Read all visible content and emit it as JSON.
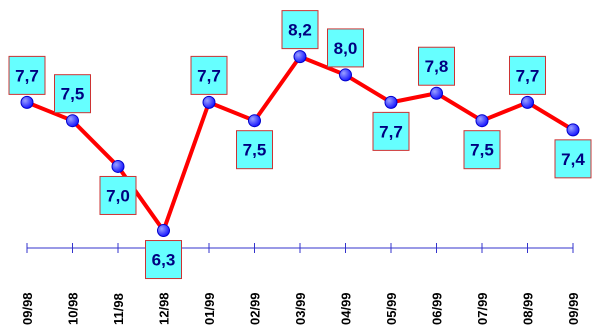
{
  "chart_data": {
    "type": "line",
    "title": "",
    "xlabel": "",
    "ylabel": "",
    "categories": [
      "09/98",
      "10/98",
      "11/98",
      "12/98",
      "01/99",
      "02/99",
      "03/99",
      "04/99",
      "05/99",
      "06/99",
      "07/99",
      "08/99",
      "09/99"
    ],
    "series": [
      {
        "values": [
          7.7,
          7.5,
          7.0,
          6.3,
          7.7,
          7.5,
          8.2,
          8.0,
          7.7,
          7.8,
          7.5,
          7.7,
          7.4
        ],
        "labels": [
          "7,7",
          "7,5",
          "7,0",
          "6,3",
          "7,7",
          "7,5",
          "8,2",
          "8,0",
          "7,7",
          "7,8",
          "7,5",
          "7,7",
          "7,4"
        ]
      }
    ],
    "ylim": [
      6.0,
      8.6
    ],
    "grid": false,
    "legend": "none",
    "colors": {
      "line": "#ff0000",
      "marker": "#1a1aff",
      "label_fill": "#66ffff",
      "label_border": "#cc3333",
      "label_text": "#000080",
      "axis": "#3333cc"
    }
  }
}
